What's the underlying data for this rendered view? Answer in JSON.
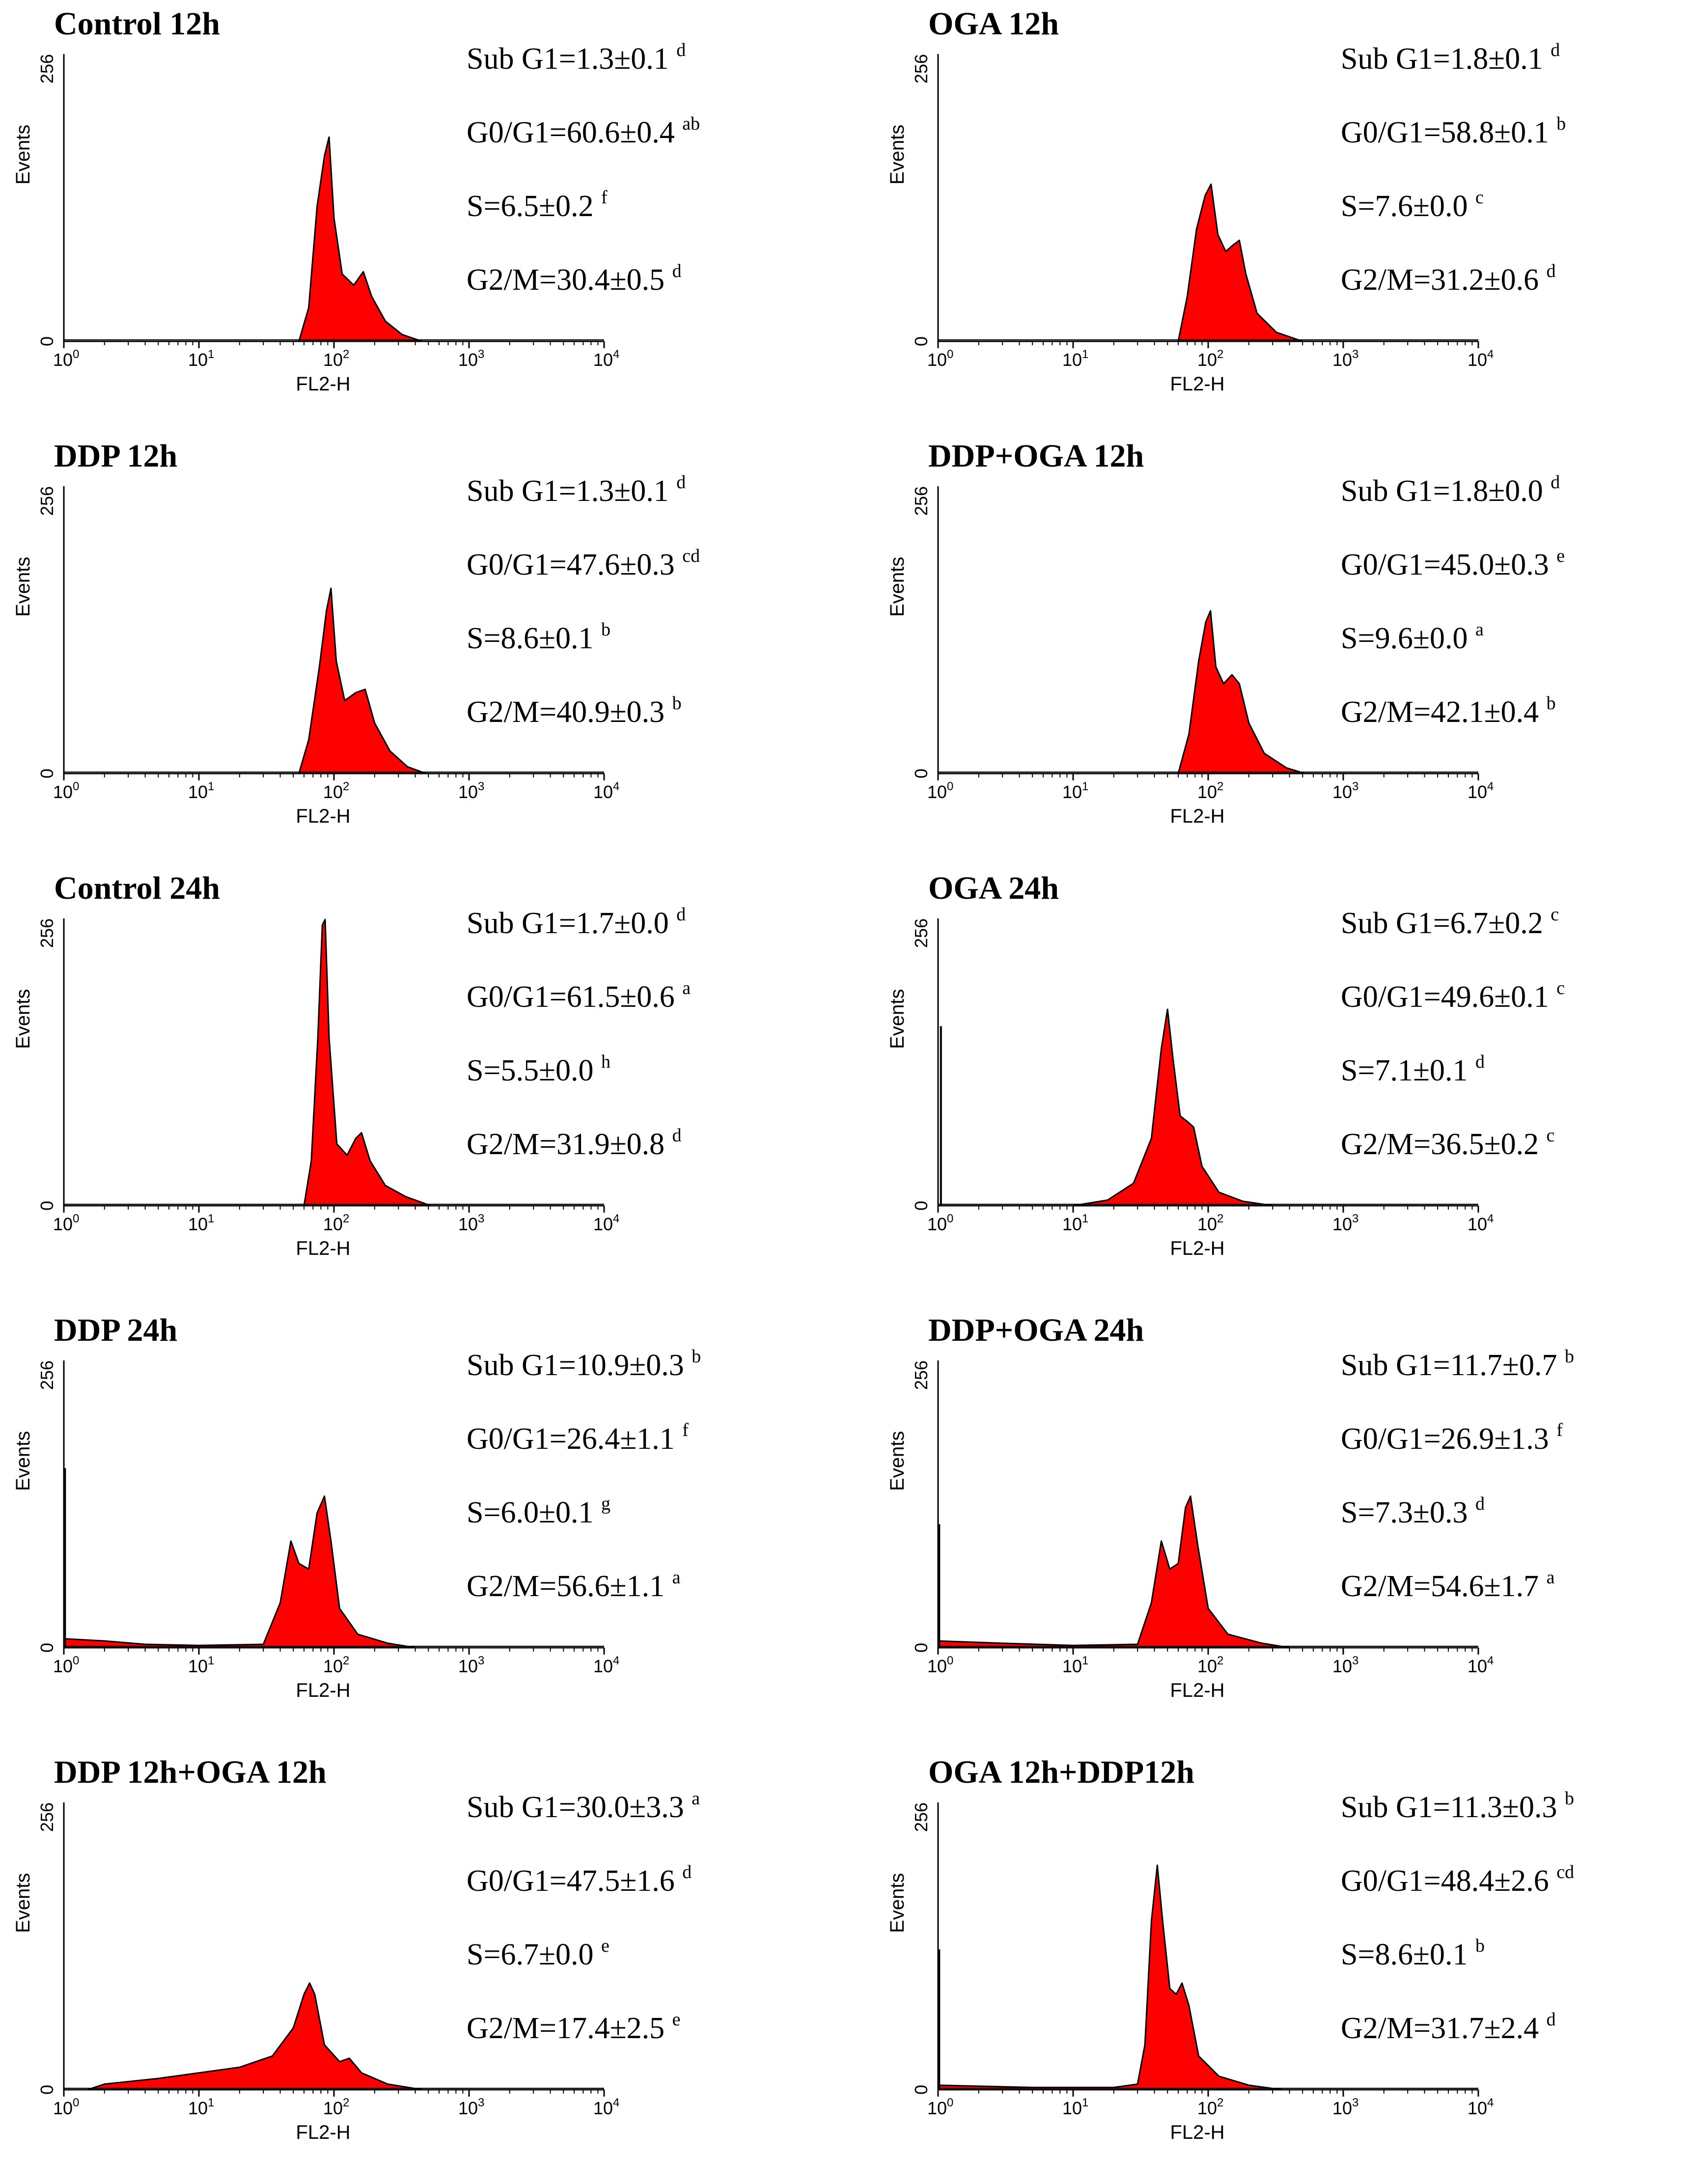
{
  "chart_data": [
    {
      "type": "area",
      "title": "Control 12h",
      "xlabel": "FL2-H",
      "ylabel": "Events",
      "x_scale": "log",
      "xlim": [
        1,
        10000
      ],
      "ylim": [
        0,
        256
      ],
      "yticks": [
        "0",
        "256"
      ],
      "xticks": [
        {
          "base": "10",
          "exp": "0"
        },
        {
          "base": "10",
          "exp": "1"
        },
        {
          "base": "10",
          "exp": "2"
        },
        {
          "base": "10",
          "exp": "3"
        },
        {
          "base": "10",
          "exp": "4"
        }
      ],
      "stats": [
        {
          "label": "Sub G1=1.3±0.1",
          "sup": "d"
        },
        {
          "label": "G0/G1=60.6±0.4",
          "sup": "ab"
        },
        {
          "label": "S=6.5±0.2",
          "sup": "f"
        },
        {
          "label": "G2/M=30.4±0.5",
          "sup": "d"
        }
      ],
      "histogram": {
        "baseline": [
          [
            1,
            0
          ],
          [
            55,
            0
          ]
        ],
        "peaks": [
          [
            92,
            180
          ],
          [
            165,
            60
          ]
        ],
        "spike_at_1": 0
      },
      "points": [
        [
          55,
          0
        ],
        [
          65,
          30
        ],
        [
          75,
          120
        ],
        [
          85,
          165
        ],
        [
          92,
          182
        ],
        [
          100,
          110
        ],
        [
          115,
          60
        ],
        [
          140,
          50
        ],
        [
          165,
          62
        ],
        [
          190,
          40
        ],
        [
          240,
          18
        ],
        [
          320,
          6
        ],
        [
          450,
          0
        ]
      ]
    },
    {
      "type": "area",
      "title": "OGA 12h",
      "xlabel": "FL2-H",
      "ylabel": "Events",
      "x_scale": "log",
      "xlim": [
        1,
        10000
      ],
      "ylim": [
        0,
        256
      ],
      "yticks": [
        "0",
        "256"
      ],
      "xticks": [
        {
          "base": "10",
          "exp": "0"
        },
        {
          "base": "10",
          "exp": "1"
        },
        {
          "base": "10",
          "exp": "2"
        },
        {
          "base": "10",
          "exp": "3"
        },
        {
          "base": "10",
          "exp": "4"
        }
      ],
      "stats": [
        {
          "label": "Sub G1=1.8±0.1",
          "sup": "d"
        },
        {
          "label": "G0/G1=58.8±0.1",
          "sup": "b"
        },
        {
          "label": "S=7.6±0.0",
          "sup": "c"
        },
        {
          "label": "G2/M=31.2±0.6",
          "sup": "d"
        }
      ],
      "points": [
        [
          60,
          0
        ],
        [
          70,
          40
        ],
        [
          82,
          100
        ],
        [
          95,
          130
        ],
        [
          105,
          140
        ],
        [
          118,
          95
        ],
        [
          135,
          80
        ],
        [
          150,
          85
        ],
        [
          170,
          90
        ],
        [
          190,
          60
        ],
        [
          230,
          25
        ],
        [
          320,
          8
        ],
        [
          500,
          0
        ]
      ]
    },
    {
      "type": "area",
      "title": "DDP 12h",
      "xlabel": "FL2-H",
      "ylabel": "Events",
      "x_scale": "log",
      "xlim": [
        1,
        10000
      ],
      "ylim": [
        0,
        256
      ],
      "yticks": [
        "0",
        "256"
      ],
      "xticks": [
        {
          "base": "10",
          "exp": "0"
        },
        {
          "base": "10",
          "exp": "1"
        },
        {
          "base": "10",
          "exp": "2"
        },
        {
          "base": "10",
          "exp": "3"
        },
        {
          "base": "10",
          "exp": "4"
        }
      ],
      "stats": [
        {
          "label": "Sub G1=1.3±0.1",
          "sup": "d"
        },
        {
          "label": "G0/G1=47.6±0.3",
          "sup": "cd"
        },
        {
          "label": "S=8.6±0.1",
          "sup": "b"
        },
        {
          "label": "G2/M=40.9±0.3",
          "sup": "b"
        }
      ],
      "points": [
        [
          55,
          0
        ],
        [
          65,
          30
        ],
        [
          78,
          95
        ],
        [
          88,
          145
        ],
        [
          95,
          165
        ],
        [
          104,
          100
        ],
        [
          120,
          65
        ],
        [
          145,
          72
        ],
        [
          170,
          75
        ],
        [
          200,
          45
        ],
        [
          260,
          20
        ],
        [
          350,
          6
        ],
        [
          480,
          0
        ]
      ]
    },
    {
      "type": "area",
      "title": "DDP+OGA 12h",
      "xlabel": "FL2-H",
      "ylabel": "Events",
      "x_scale": "log",
      "xlim": [
        1,
        10000
      ],
      "ylim": [
        0,
        256
      ],
      "yticks": [
        "0",
        "256"
      ],
      "xticks": [
        {
          "base": "10",
          "exp": "0"
        },
        {
          "base": "10",
          "exp": "1"
        },
        {
          "base": "10",
          "exp": "2"
        },
        {
          "base": "10",
          "exp": "3"
        },
        {
          "base": "10",
          "exp": "4"
        }
      ],
      "stats": [
        {
          "label": "Sub G1=1.8±0.0",
          "sup": "d"
        },
        {
          "label": "G0/G1=45.0±0.3",
          "sup": "e"
        },
        {
          "label": "S=9.6±0.0",
          "sup": "a"
        },
        {
          "label": "G2/M=42.1±0.4",
          "sup": "b"
        }
      ],
      "points": [
        [
          60,
          0
        ],
        [
          72,
          35
        ],
        [
          85,
          100
        ],
        [
          96,
          135
        ],
        [
          104,
          145
        ],
        [
          114,
          95
        ],
        [
          130,
          80
        ],
        [
          150,
          88
        ],
        [
          170,
          80
        ],
        [
          200,
          45
        ],
        [
          260,
          18
        ],
        [
          380,
          5
        ],
        [
          520,
          0
        ]
      ]
    },
    {
      "type": "area",
      "title": "Control 24h",
      "xlabel": "FL2-H",
      "ylabel": "Events",
      "x_scale": "log",
      "xlim": [
        1,
        10000
      ],
      "ylim": [
        0,
        256
      ],
      "yticks": [
        "0",
        "256"
      ],
      "xticks": [
        {
          "base": "10",
          "exp": "0"
        },
        {
          "base": "10",
          "exp": "1"
        },
        {
          "base": "10",
          "exp": "2"
        },
        {
          "base": "10",
          "exp": "3"
        },
        {
          "base": "10",
          "exp": "4"
        }
      ],
      "stats": [
        {
          "label": "Sub G1=1.7±0.0",
          "sup": "d"
        },
        {
          "label": "G0/G1=61.5±0.6",
          "sup": "a"
        },
        {
          "label": "S=5.5±0.0",
          "sup": "h"
        },
        {
          "label": "G2/M=31.9±0.8",
          "sup": "d"
        }
      ],
      "points": [
        [
          60,
          0
        ],
        [
          68,
          40
        ],
        [
          76,
          150
        ],
        [
          82,
          250
        ],
        [
          86,
          255
        ],
        [
          92,
          150
        ],
        [
          105,
          55
        ],
        [
          125,
          45
        ],
        [
          145,
          60
        ],
        [
          160,
          65
        ],
        [
          185,
          40
        ],
        [
          240,
          18
        ],
        [
          340,
          8
        ],
        [
          520,
          0
        ]
      ]
    },
    {
      "type": "area",
      "title": "OGA 24h",
      "xlabel": "FL2-H",
      "ylabel": "Events",
      "x_scale": "log",
      "xlim": [
        1,
        10000
      ],
      "ylim": [
        0,
        256
      ],
      "yticks": [
        "0",
        "256"
      ],
      "xticks": [
        {
          "base": "10",
          "exp": "0"
        },
        {
          "base": "10",
          "exp": "1"
        },
        {
          "base": "10",
          "exp": "2"
        },
        {
          "base": "10",
          "exp": "3"
        },
        {
          "base": "10",
          "exp": "4"
        }
      ],
      "stats": [
        {
          "label": "Sub G1=6.7±0.2",
          "sup": "c"
        },
        {
          "label": "G0/G1=49.6±0.1",
          "sup": "c"
        },
        {
          "label": "S=7.1±0.1",
          "sup": "d"
        },
        {
          "label": "G2/M=36.5±0.2",
          "sup": "c"
        }
      ],
      "spike": {
        "x": 1.05,
        "y": 160
      },
      "points": [
        [
          10,
          0
        ],
        [
          18,
          5
        ],
        [
          28,
          20
        ],
        [
          38,
          60
        ],
        [
          45,
          140
        ],
        [
          50,
          175
        ],
        [
          55,
          130
        ],
        [
          62,
          80
        ],
        [
          70,
          75
        ],
        [
          78,
          70
        ],
        [
          90,
          35
        ],
        [
          120,
          12
        ],
        [
          180,
          4
        ],
        [
          300,
          0
        ]
      ]
    },
    {
      "type": "area",
      "title": "DDP 24h",
      "xlabel": "FL2-H",
      "ylabel": "Events",
      "x_scale": "log",
      "xlim": [
        1,
        10000
      ],
      "ylim": [
        0,
        256
      ],
      "yticks": [
        "0",
        "256"
      ],
      "xticks": [
        {
          "base": "10",
          "exp": "0"
        },
        {
          "base": "10",
          "exp": "1"
        },
        {
          "base": "10",
          "exp": "2"
        },
        {
          "base": "10",
          "exp": "3"
        },
        {
          "base": "10",
          "exp": "4"
        }
      ],
      "stats": [
        {
          "label": "Sub G1=10.9±0.3",
          "sup": "b"
        },
        {
          "label": "G0/G1=26.4±1.1",
          "sup": "f"
        },
        {
          "label": "S=6.0±0.1",
          "sup": "g"
        },
        {
          "label": "G2/M=56.6±1.1",
          "sup": "a"
        }
      ],
      "spike": {
        "x": 1.02,
        "y": 160
      },
      "points": [
        [
          1,
          8
        ],
        [
          2,
          6
        ],
        [
          4,
          3
        ],
        [
          10,
          2
        ],
        [
          30,
          3
        ],
        [
          40,
          40
        ],
        [
          48,
          95
        ],
        [
          55,
          75
        ],
        [
          65,
          70
        ],
        [
          75,
          120
        ],
        [
          85,
          135
        ],
        [
          95,
          95
        ],
        [
          110,
          35
        ],
        [
          150,
          12
        ],
        [
          250,
          4
        ],
        [
          400,
          0
        ]
      ]
    },
    {
      "type": "area",
      "title": "DDP+OGA 24h",
      "xlabel": "FL2-H",
      "ylabel": "Events",
      "x_scale": "log",
      "xlim": [
        1,
        10000
      ],
      "ylim": [
        0,
        256
      ],
      "yticks": [
        "0",
        "256"
      ],
      "xticks": [
        {
          "base": "10",
          "exp": "0"
        },
        {
          "base": "10",
          "exp": "1"
        },
        {
          "base": "10",
          "exp": "2"
        },
        {
          "base": "10",
          "exp": "3"
        },
        {
          "base": "10",
          "exp": "4"
        }
      ],
      "stats": [
        {
          "label": "Sub G1=11.7±0.7",
          "sup": "b"
        },
        {
          "label": "G0/G1=26.9±1.3",
          "sup": "f"
        },
        {
          "label": "S=7.3±0.3",
          "sup": "d"
        },
        {
          "label": "G2/M=54.6±1.7",
          "sup": "a"
        }
      ],
      "spike": {
        "x": 1.02,
        "y": 110
      },
      "points": [
        [
          1,
          6
        ],
        [
          3,
          4
        ],
        [
          10,
          2
        ],
        [
          30,
          3
        ],
        [
          38,
          40
        ],
        [
          45,
          95
        ],
        [
          52,
          70
        ],
        [
          60,
          75
        ],
        [
          68,
          125
        ],
        [
          74,
          135
        ],
        [
          84,
          90
        ],
        [
          100,
          35
        ],
        [
          140,
          12
        ],
        [
          250,
          4
        ],
        [
          400,
          0
        ]
      ]
    },
    {
      "type": "area",
      "title": "DDP 12h+OGA 12h",
      "xlabel": "FL2-H",
      "ylabel": "Events",
      "x_scale": "log",
      "xlim": [
        1,
        10000
      ],
      "ylim": [
        0,
        256
      ],
      "yticks": [
        "0",
        "256"
      ],
      "xticks": [
        {
          "base": "10",
          "exp": "0"
        },
        {
          "base": "10",
          "exp": "1"
        },
        {
          "base": "10",
          "exp": "2"
        },
        {
          "base": "10",
          "exp": "3"
        },
        {
          "base": "10",
          "exp": "4"
        }
      ],
      "stats": [
        {
          "label": "Sub G1=30.0±3.3",
          "sup": "a"
        },
        {
          "label": "G0/G1=47.5±1.6",
          "sup": "d"
        },
        {
          "label": "S=6.7±0.0",
          "sup": "e"
        },
        {
          "label": "G2/M=17.4±2.5",
          "sup": "e"
        }
      ],
      "points": [
        [
          1.5,
          0
        ],
        [
          2,
          5
        ],
        [
          5,
          10
        ],
        [
          10,
          15
        ],
        [
          20,
          20
        ],
        [
          35,
          30
        ],
        [
          50,
          55
        ],
        [
          60,
          85
        ],
        [
          66,
          95
        ],
        [
          72,
          85
        ],
        [
          85,
          40
        ],
        [
          110,
          25
        ],
        [
          130,
          28
        ],
        [
          160,
          15
        ],
        [
          250,
          5
        ],
        [
          450,
          0
        ]
      ]
    },
    {
      "type": "area",
      "title": "OGA 12h+DDP12h",
      "xlabel": "FL2-H",
      "ylabel": "Events",
      "x_scale": "log",
      "xlim": [
        1,
        10000
      ],
      "ylim": [
        0,
        256
      ],
      "yticks": [
        "0",
        "256"
      ],
      "xticks": [
        {
          "base": "10",
          "exp": "0"
        },
        {
          "base": "10",
          "exp": "1"
        },
        {
          "base": "10",
          "exp": "2"
        },
        {
          "base": "10",
          "exp": "3"
        },
        {
          "base": "10",
          "exp": "4"
        }
      ],
      "stats": [
        {
          "label": "Sub G1=11.3±0.3",
          "sup": "b"
        },
        {
          "label": "G0/G1=48.4±2.6",
          "sup": "cd"
        },
        {
          "label": "S=8.6±0.1",
          "sup": "b"
        },
        {
          "label": "G2/M=31.7±2.4",
          "sup": "d"
        }
      ],
      "spike": {
        "x": 1.02,
        "y": 125
      },
      "points": [
        [
          1,
          4
        ],
        [
          5,
          2
        ],
        [
          20,
          2
        ],
        [
          30,
          5
        ],
        [
          34,
          40
        ],
        [
          38,
          150
        ],
        [
          42,
          200
        ],
        [
          46,
          150
        ],
        [
          52,
          90
        ],
        [
          58,
          85
        ],
        [
          64,
          95
        ],
        [
          72,
          75
        ],
        [
          85,
          30
        ],
        [
          120,
          12
        ],
        [
          200,
          4
        ],
        [
          350,
          0
        ]
      ]
    }
  ]
}
